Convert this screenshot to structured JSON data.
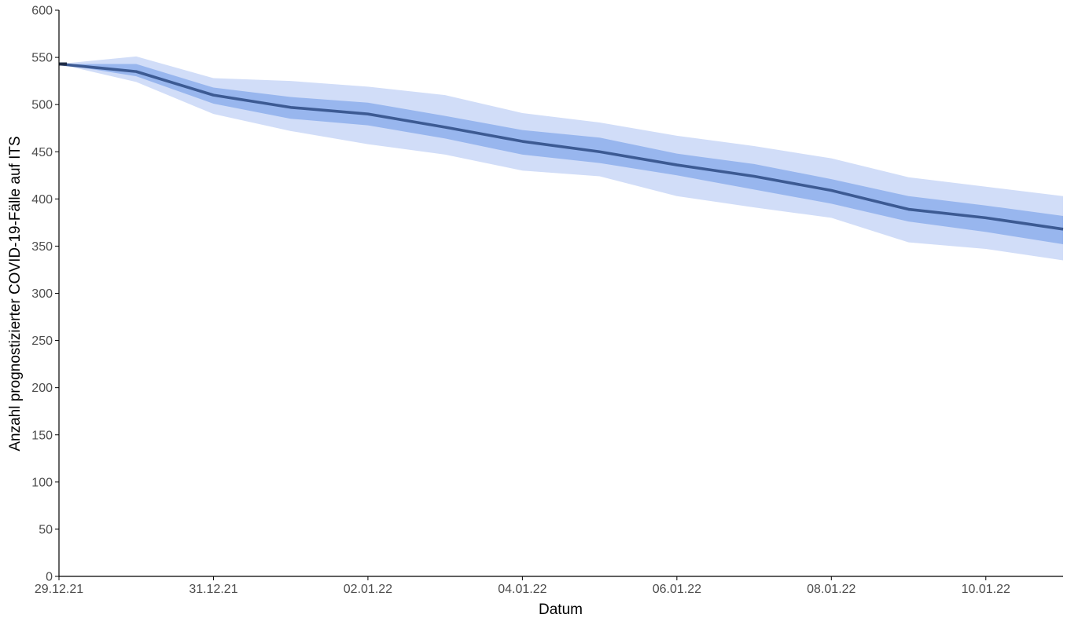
{
  "chart_data": {
    "type": "area",
    "xlabel": "Datum",
    "ylabel": "Anzahl prognostizierter COVID-19-Fälle auf ITS",
    "ylim": [
      0,
      600
    ],
    "xlim": [
      "2021-12-29",
      "2022-01-11"
    ],
    "grid": false,
    "x_ticks": [
      {
        "date": "2021-12-29",
        "label": "29.12.21"
      },
      {
        "date": "2021-12-31",
        "label": "31.12.21"
      },
      {
        "date": "2022-01-02",
        "label": "02.01.22"
      },
      {
        "date": "2022-01-04",
        "label": "04.01.22"
      },
      {
        "date": "2022-01-06",
        "label": "06.01.22"
      },
      {
        "date": "2022-01-08",
        "label": "08.01.22"
      },
      {
        "date": "2022-01-10",
        "label": "10.01.22"
      }
    ],
    "y_ticks": [
      0,
      50,
      100,
      150,
      200,
      250,
      300,
      350,
      400,
      450,
      500,
      550,
      600
    ],
    "x": [
      "2021-12-29",
      "2021-12-30",
      "2021-12-31",
      "2022-01-01",
      "2022-01-02",
      "2022-01-03",
      "2022-01-04",
      "2022-01-05",
      "2022-01-06",
      "2022-01-07",
      "2022-01-08",
      "2022-01-09",
      "2022-01-10",
      "2022-01-11"
    ],
    "series": [
      {
        "values": [
          543,
          535,
          510,
          497,
          490,
          476,
          461,
          450,
          436,
          424,
          409,
          389,
          380,
          368
        ]
      },
      {
        "values": [
          543,
          543,
          518,
          508,
          502,
          488,
          473,
          465,
          448,
          437,
          421,
          403,
          393,
          382
        ]
      },
      {
        "values": [
          543,
          530,
          501,
          485,
          478,
          464,
          447,
          438,
          425,
          410,
          395,
          376,
          365,
          352
        ]
      },
      {
        "values": [
          543,
          551,
          528,
          525,
          519,
          510,
          491,
          481,
          467,
          456,
          443,
          423,
          413,
          403
        ]
      },
      {
        "values": [
          543,
          524,
          490,
          472,
          458,
          447,
          430,
          424,
          403,
          391,
          380,
          354,
          347,
          335
        ]
      }
    ],
    "colors": {
      "line": "#3c5a93",
      "inner_band": "#98b6ee",
      "outer_band": "#d1ddf8",
      "axis": "#000000",
      "tick_text": "#4d4d4d"
    }
  }
}
